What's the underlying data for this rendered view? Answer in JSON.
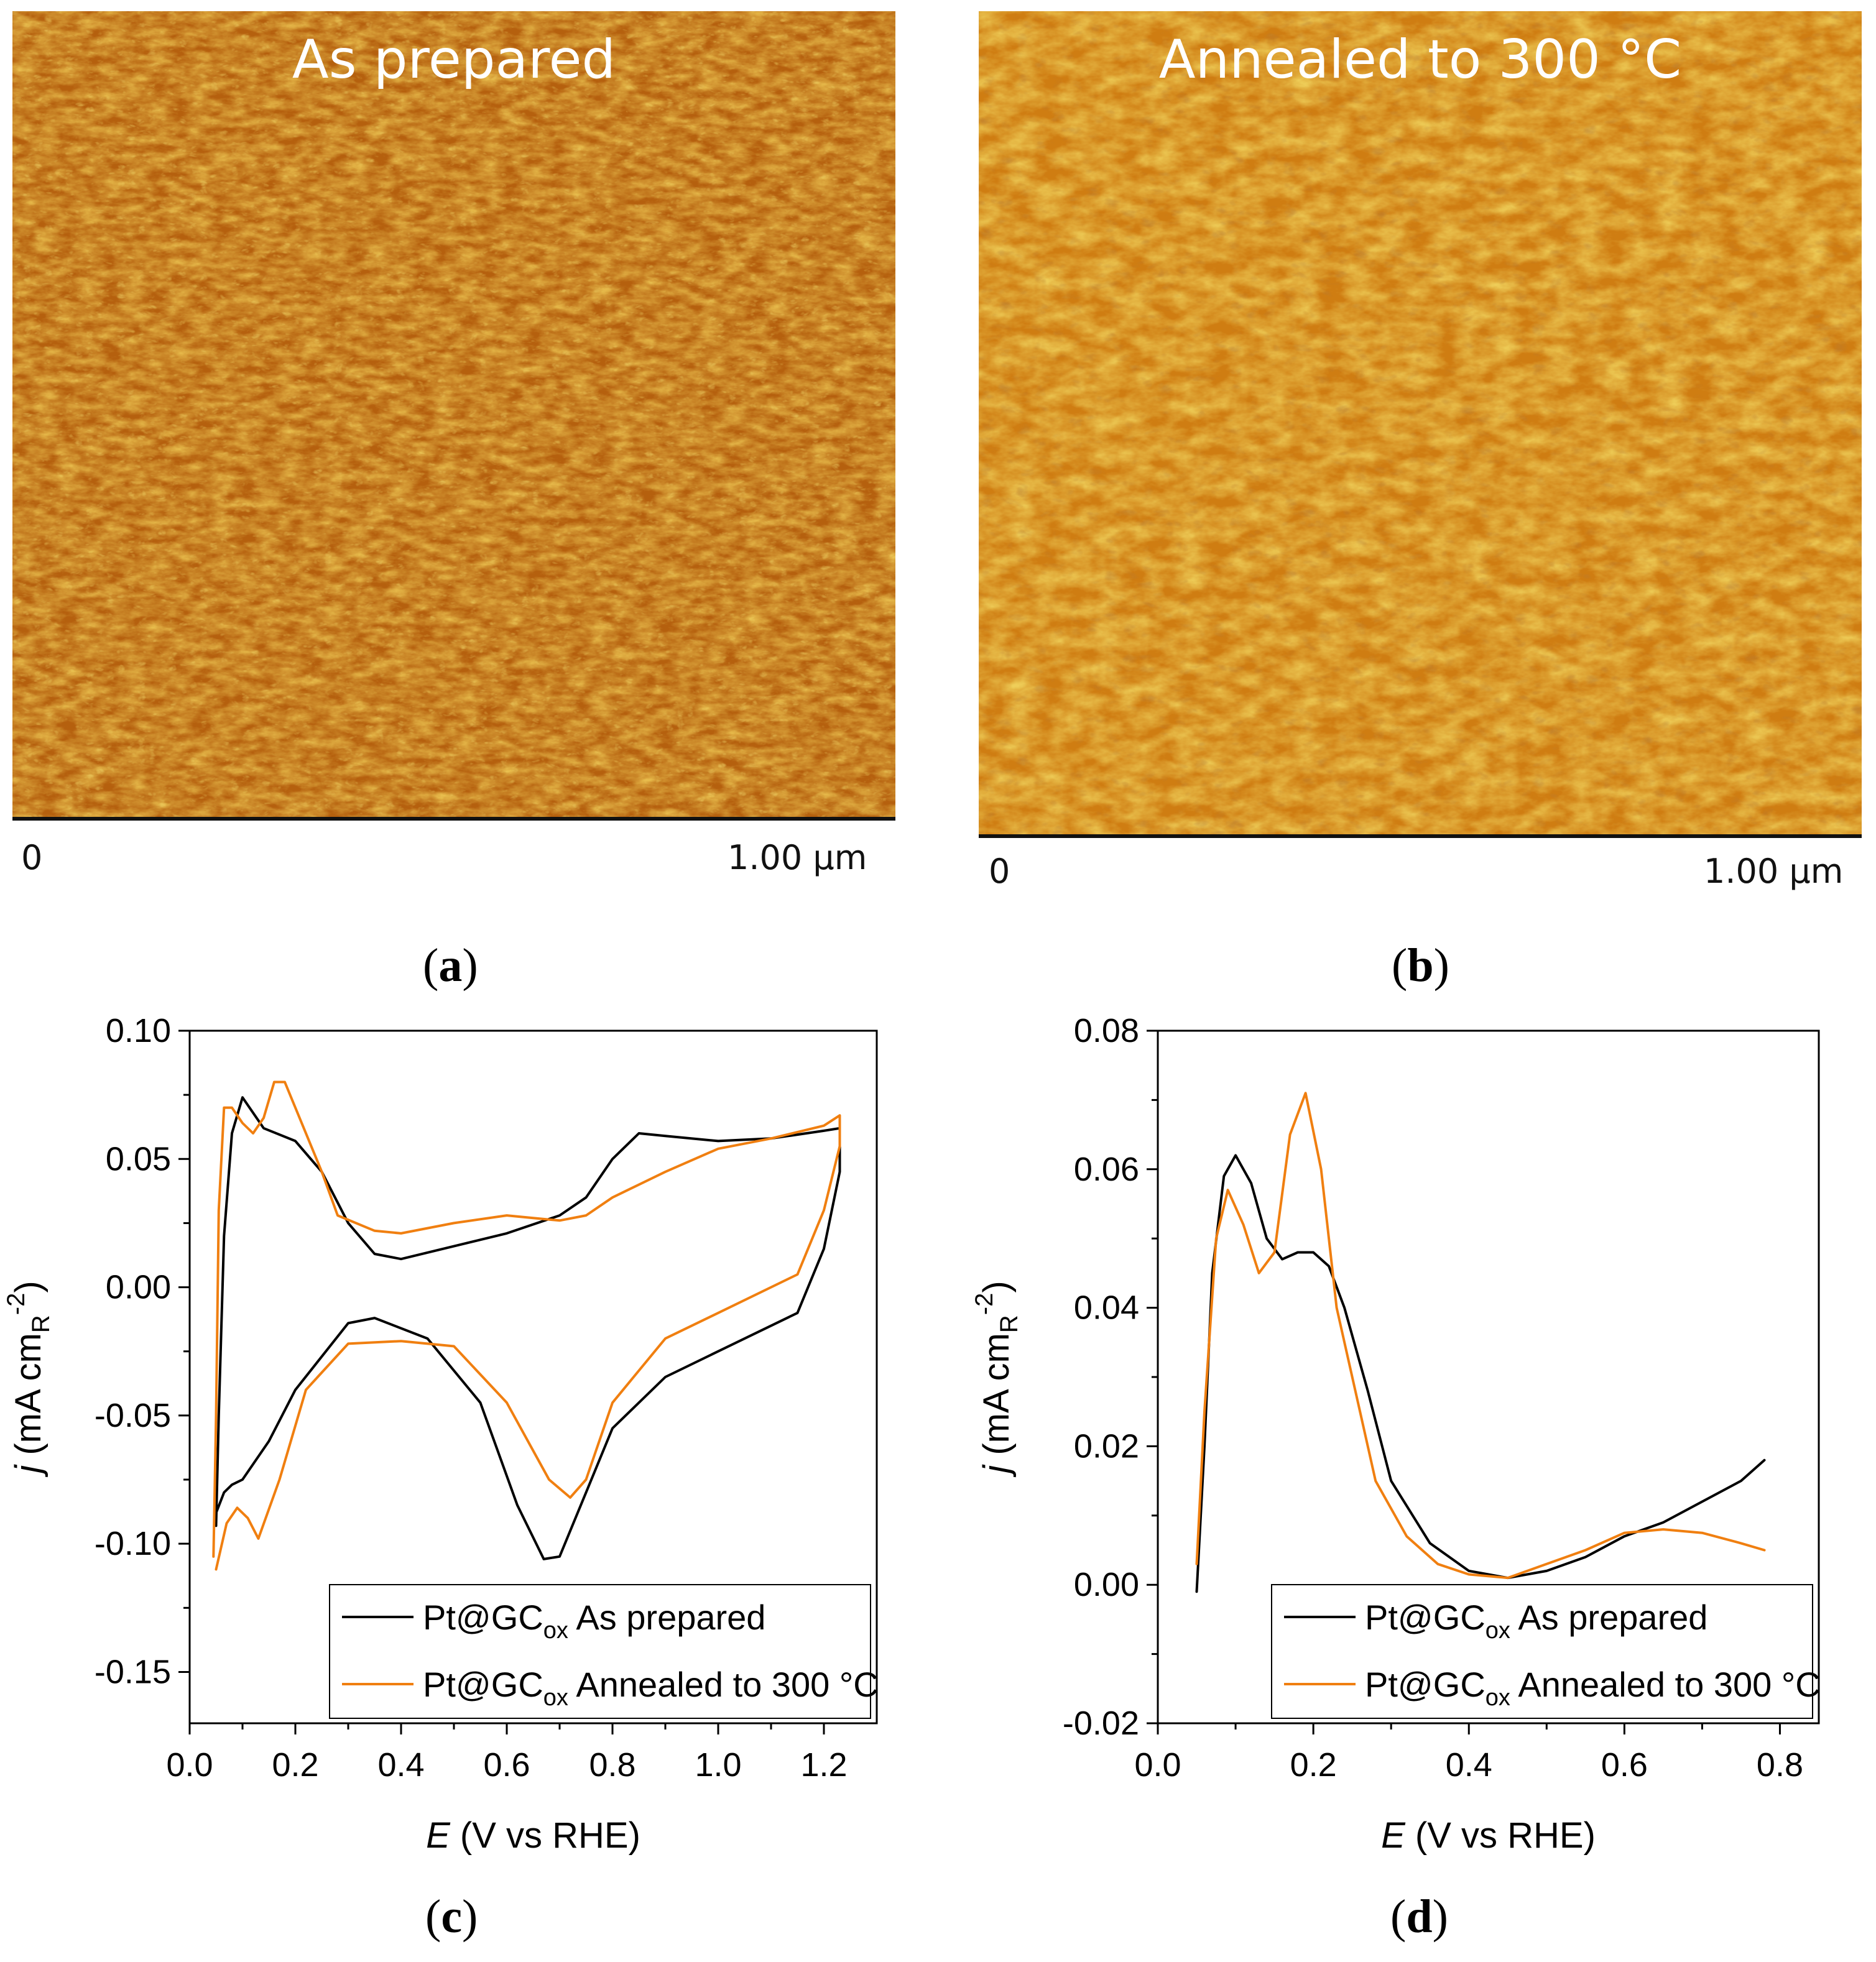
{
  "afm": {
    "a": {
      "title": "As prepared",
      "scale_start": "0",
      "scale_end": "1.00 μm"
    },
    "b": {
      "title": "Annealed to 300 °C",
      "scale_start": "0",
      "scale_end": "1.00 μm"
    }
  },
  "panel_labels": {
    "a": "a",
    "b": "b",
    "c": "c",
    "d": "d"
  },
  "colors": {
    "as_prepared": "#000000",
    "annealed": "#f07f10",
    "afm_dark": "#9a4a0c",
    "afm_mid": "#c7740f",
    "afm_light": "#d9a21c"
  },
  "chart_data": [
    {
      "id": "c",
      "type": "line",
      "xlabel": "E (V vs RHE)",
      "ylabel": "j (mA cm_R^-2)",
      "xlim": [
        0.0,
        1.3
      ],
      "ylim": [
        -0.17,
        0.1
      ],
      "xticks": [
        0.0,
        0.2,
        0.4,
        0.6,
        0.8,
        1.0,
        1.2
      ],
      "xtick_labels": [
        "0.0",
        "0.2",
        "0.4",
        "0.6",
        "0.8",
        "1.0",
        "1.2"
      ],
      "yticks": [
        0.1,
        0.05,
        0.0,
        -0.05,
        -0.1,
        -0.15
      ],
      "ytick_labels": [
        "0.10",
        "0.05",
        "0.00",
        "-0.05",
        "-0.10",
        "-0.15"
      ],
      "legend": {
        "placement": "bottom-right",
        "entries": [
          "Pt@GCox As prepared",
          "Pt@GCox Annealed to 300 °C"
        ]
      },
      "series": [
        {
          "name": "Pt@GCox As prepared",
          "color": "#000000",
          "points": [
            [
              0.05,
              -0.093
            ],
            [
              0.055,
              -0.05
            ],
            [
              0.065,
              0.02
            ],
            [
              0.08,
              0.06
            ],
            [
              0.1,
              0.074
            ],
            [
              0.12,
              0.068
            ],
            [
              0.14,
              0.062
            ],
            [
              0.2,
              0.057
            ],
            [
              0.25,
              0.045
            ],
            [
              0.3,
              0.025
            ],
            [
              0.35,
              0.013
            ],
            [
              0.4,
              0.011
            ],
            [
              0.5,
              0.016
            ],
            [
              0.6,
              0.021
            ],
            [
              0.7,
              0.028
            ],
            [
              0.75,
              0.035
            ],
            [
              0.8,
              0.05
            ],
            [
              0.85,
              0.06
            ],
            [
              0.9,
              0.059
            ],
            [
              1.0,
              0.057
            ],
            [
              1.1,
              0.058
            ],
            [
              1.2,
              0.061
            ],
            [
              1.23,
              0.062
            ],
            [
              1.23,
              0.045
            ],
            [
              1.2,
              0.015
            ],
            [
              1.15,
              -0.01
            ],
            [
              1.0,
              -0.025
            ],
            [
              0.9,
              -0.035
            ],
            [
              0.8,
              -0.055
            ],
            [
              0.75,
              -0.08
            ],
            [
              0.7,
              -0.105
            ],
            [
              0.67,
              -0.106
            ],
            [
              0.62,
              -0.085
            ],
            [
              0.55,
              -0.045
            ],
            [
              0.45,
              -0.02
            ],
            [
              0.35,
              -0.012
            ],
            [
              0.3,
              -0.014
            ],
            [
              0.2,
              -0.04
            ],
            [
              0.15,
              -0.06
            ],
            [
              0.1,
              -0.075
            ],
            [
              0.08,
              -0.077
            ],
            [
              0.065,
              -0.08
            ],
            [
              0.05,
              -0.088
            ]
          ]
        },
        {
          "name": "Pt@GCox Annealed to 300 °C",
          "color": "#f07f10",
          "points": [
            [
              0.045,
              -0.105
            ],
            [
              0.05,
              -0.05
            ],
            [
              0.055,
              0.03
            ],
            [
              0.065,
              0.07
            ],
            [
              0.08,
              0.07
            ],
            [
              0.1,
              0.064
            ],
            [
              0.12,
              0.06
            ],
            [
              0.14,
              0.066
            ],
            [
              0.16,
              0.08
            ],
            [
              0.18,
              0.08
            ],
            [
              0.2,
              0.07
            ],
            [
              0.25,
              0.045
            ],
            [
              0.28,
              0.028
            ],
            [
              0.35,
              0.022
            ],
            [
              0.4,
              0.021
            ],
            [
              0.5,
              0.025
            ],
            [
              0.6,
              0.028
            ],
            [
              0.65,
              0.027
            ],
            [
              0.7,
              0.026
            ],
            [
              0.75,
              0.028
            ],
            [
              0.8,
              0.035
            ],
            [
              0.9,
              0.045
            ],
            [
              1.0,
              0.054
            ],
            [
              1.1,
              0.058
            ],
            [
              1.2,
              0.063
            ],
            [
              1.23,
              0.067
            ],
            [
              1.23,
              0.055
            ],
            [
              1.2,
              0.03
            ],
            [
              1.15,
              0.005
            ],
            [
              1.0,
              -0.01
            ],
            [
              0.9,
              -0.02
            ],
            [
              0.8,
              -0.045
            ],
            [
              0.75,
              -0.075
            ],
            [
              0.72,
              -0.082
            ],
            [
              0.68,
              -0.075
            ],
            [
              0.6,
              -0.045
            ],
            [
              0.5,
              -0.023
            ],
            [
              0.4,
              -0.021
            ],
            [
              0.3,
              -0.022
            ],
            [
              0.22,
              -0.04
            ],
            [
              0.17,
              -0.075
            ],
            [
              0.13,
              -0.098
            ],
            [
              0.11,
              -0.09
            ],
            [
              0.09,
              -0.086
            ],
            [
              0.07,
              -0.092
            ],
            [
              0.05,
              -0.11
            ]
          ]
        }
      ]
    },
    {
      "id": "d",
      "type": "line",
      "xlabel": "E (V vs RHE)",
      "ylabel": "j (mA cm_R^-2)",
      "xlim": [
        0.0,
        0.85
      ],
      "ylim": [
        -0.02,
        0.08
      ],
      "xticks": [
        0.0,
        0.2,
        0.4,
        0.6,
        0.8
      ],
      "xtick_labels": [
        "0.0",
        "0.2",
        "0.4",
        "0.6",
        "0.8"
      ],
      "yticks": [
        0.08,
        0.06,
        0.04,
        0.02,
        0.0,
        -0.02
      ],
      "ytick_labels": [
        "0.08",
        "0.06",
        "0.04",
        "0.02",
        "0.00",
        "-0.02"
      ],
      "legend": {
        "placement": "bottom-right",
        "entries": [
          "Pt@GCox As prepared",
          "Pt@GCox Annealed to 300 °C"
        ]
      },
      "series": [
        {
          "name": "Pt@GCox As prepared",
          "color": "#000000",
          "points": [
            [
              0.05,
              -0.001
            ],
            [
              0.06,
              0.02
            ],
            [
              0.07,
              0.045
            ],
            [
              0.085,
              0.059
            ],
            [
              0.1,
              0.062
            ],
            [
              0.12,
              0.058
            ],
            [
              0.14,
              0.05
            ],
            [
              0.16,
              0.047
            ],
            [
              0.18,
              0.048
            ],
            [
              0.2,
              0.048
            ],
            [
              0.22,
              0.046
            ],
            [
              0.24,
              0.04
            ],
            [
              0.27,
              0.028
            ],
            [
              0.3,
              0.015
            ],
            [
              0.35,
              0.006
            ],
            [
              0.4,
              0.002
            ],
            [
              0.45,
              0.001
            ],
            [
              0.5,
              0.002
            ],
            [
              0.55,
              0.004
            ],
            [
              0.6,
              0.007
            ],
            [
              0.65,
              0.009
            ],
            [
              0.7,
              0.012
            ],
            [
              0.75,
              0.015
            ],
            [
              0.78,
              0.018
            ]
          ]
        },
        {
          "name": "Pt@GCox Annealed to 300 °C",
          "color": "#f07f10",
          "points": [
            [
              0.05,
              0.003
            ],
            [
              0.06,
              0.025
            ],
            [
              0.075,
              0.05
            ],
            [
              0.09,
              0.057
            ],
            [
              0.11,
              0.052
            ],
            [
              0.13,
              0.045
            ],
            [
              0.15,
              0.048
            ],
            [
              0.17,
              0.065
            ],
            [
              0.19,
              0.071
            ],
            [
              0.21,
              0.06
            ],
            [
              0.23,
              0.04
            ],
            [
              0.26,
              0.025
            ],
            [
              0.28,
              0.015
            ],
            [
              0.32,
              0.007
            ],
            [
              0.36,
              0.003
            ],
            [
              0.4,
              0.0015
            ],
            [
              0.45,
              0.001
            ],
            [
              0.5,
              0.003
            ],
            [
              0.55,
              0.005
            ],
            [
              0.6,
              0.0075
            ],
            [
              0.65,
              0.008
            ],
            [
              0.7,
              0.0075
            ],
            [
              0.75,
              0.006
            ],
            [
              0.78,
              0.005
            ]
          ]
        }
      ]
    }
  ]
}
